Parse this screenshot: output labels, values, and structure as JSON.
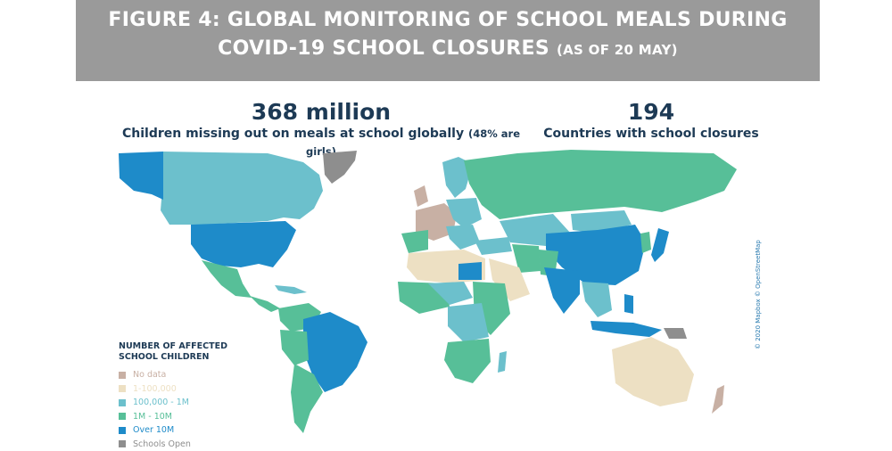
{
  "header": {
    "line1": "FIGURE 4: GLOBAL MONITORING OF SCHOOL MEALS DURING",
    "line2_main": "COVID-19 SCHOOL CLOSURES",
    "line2_small": "(AS OF 20 MAY)"
  },
  "stats": {
    "children": {
      "value": "368 million",
      "caption": "Children missing out on meals at school globally",
      "note": "(48% are girls)"
    },
    "countries": {
      "value": "194",
      "caption": "Countries with school closures"
    }
  },
  "legend": {
    "title_line1": "NUMBER OF AFFECTED",
    "title_line2": "SCHOOL CHILDREN",
    "items": [
      {
        "label": "No data",
        "color": "#c8b0a4"
      },
      {
        "label": "1-100,000",
        "color": "#ede0c3"
      },
      {
        "label": "100,000 - 1M",
        "color": "#6cc0cc"
      },
      {
        "label": "1M - 10M",
        "color": "#57bf98"
      },
      {
        "label": "Over 10M",
        "color": "#1e8bc9"
      },
      {
        "label": "Schools Open",
        "color": "#8e8e8e"
      }
    ]
  },
  "credit": "© 2020 Mapbox © OpenStreetMap"
}
